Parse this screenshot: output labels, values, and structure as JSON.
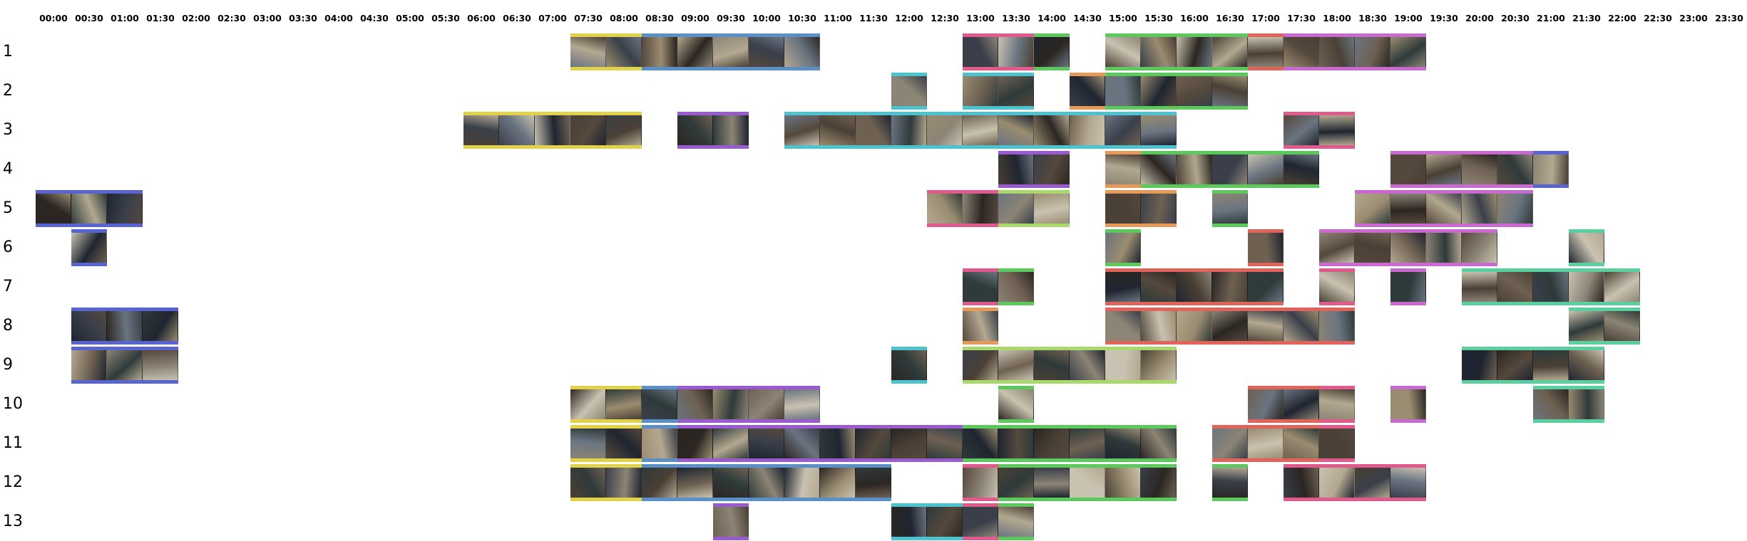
{
  "time_ticks": [
    "00:00",
    "00:30",
    "01:00",
    "01:30",
    "02:00",
    "02:30",
    "03:00",
    "03:30",
    "04:00",
    "04:30",
    "05:00",
    "05:30",
    "06:00",
    "06:30",
    "07:00",
    "07:30",
    "08:00",
    "08:30",
    "09:00",
    "09:30",
    "10:00",
    "10:30",
    "11:00",
    "11:30",
    "12:00",
    "12:30",
    "13:00",
    "13:30",
    "14:00",
    "14:30",
    "15:00",
    "15:30",
    "16:00",
    "16:30",
    "17:00",
    "17:30",
    "18:00",
    "18:30",
    "19:00",
    "19:30",
    "20:00",
    "20:30",
    "21:00",
    "21:30",
    "22:00",
    "22:30",
    "23:00",
    "23:30"
  ],
  "colors": {
    "yellow": "#e2d24a",
    "blue": "#5b8fc7",
    "cyan": "#4ec3d0",
    "green": "#5cc95c",
    "lime": "#a9d96a",
    "red": "#e0645a",
    "orange": "#e69a5a",
    "pink": "#e05a8c",
    "magenta": "#c96ad0",
    "purple": "#9a5ad0",
    "indigo": "#5a64d0",
    "teal": "#5ad0a0"
  },
  "thumb_tones": [
    "#2b2622",
    "#6e6152",
    "#3a3f4a",
    "#8c8475",
    "#1f2530",
    "#9a8c70",
    "#4a4035",
    "#b3a890",
    "#2f3a3a",
    "#6a7480",
    "#c9c2b0",
    "#55483d"
  ],
  "rows": [
    {
      "label": "1",
      "segments": [
        {
          "slots": [
            15,
            16
          ],
          "color": "yellow"
        },
        {
          "slots": [
            17,
            18,
            19,
            20,
            21
          ],
          "color": "blue"
        },
        {
          "slots": [
            26,
            27
          ],
          "color": "pink"
        },
        {
          "slots": [
            28
          ],
          "color": "green"
        },
        {
          "slots": [
            30,
            31,
            32,
            33
          ],
          "color": "green"
        },
        {
          "slots": [
            34
          ],
          "color": "red"
        },
        {
          "slots": [
            35,
            36,
            37,
            38
          ],
          "color": "magenta"
        }
      ]
    },
    {
      "label": "2",
      "segments": [
        {
          "slots": [
            24
          ],
          "color": "cyan"
        },
        {
          "slots": [
            26,
            27
          ],
          "color": "cyan"
        },
        {
          "slots": [
            29
          ],
          "color": "orange"
        },
        {
          "slots": [
            30,
            31,
            32,
            33
          ],
          "color": "green"
        }
      ]
    },
    {
      "label": "3",
      "segments": [
        {
          "slots": [
            12,
            13,
            14,
            15,
            16
          ],
          "color": "yellow"
        },
        {
          "slots": [
            18,
            19
          ],
          "color": "purple"
        },
        {
          "slots": [
            21,
            22,
            23,
            24,
            25,
            26,
            27,
            28,
            29,
            30,
            31
          ],
          "color": "cyan"
        },
        {
          "slots": [
            35,
            36
          ],
          "color": "pink"
        }
      ]
    },
    {
      "label": "4",
      "segments": [
        {
          "slots": [
            27,
            28
          ],
          "color": "purple"
        },
        {
          "slots": [
            30
          ],
          "color": "orange"
        },
        {
          "slots": [
            31,
            32,
            33,
            34,
            35
          ],
          "color": "green"
        },
        {
          "slots": [
            38,
            39,
            40,
            41
          ],
          "color": "magenta"
        },
        {
          "slots": [
            42
          ],
          "color": "indigo"
        }
      ]
    },
    {
      "label": "5",
      "segments": [
        {
          "slots": [
            0,
            1,
            2
          ],
          "color": "indigo"
        },
        {
          "slots": [
            25,
            26
          ],
          "color": "pink"
        },
        {
          "slots": [
            27,
            28
          ],
          "color": "lime"
        },
        {
          "slots": [
            30,
            31
          ],
          "color": "orange"
        },
        {
          "slots": [
            33
          ],
          "color": "green"
        },
        {
          "slots": [
            37,
            38,
            39,
            40,
            41
          ],
          "color": "magenta"
        }
      ]
    },
    {
      "label": "6",
      "segments": [
        {
          "slots": [
            1
          ],
          "color": "indigo"
        },
        {
          "slots": [
            30
          ],
          "color": "green"
        },
        {
          "slots": [
            34
          ],
          "color": "red"
        },
        {
          "slots": [
            36,
            37,
            38,
            39,
            40
          ],
          "color": "magenta"
        },
        {
          "slots": [
            43
          ],
          "color": "teal"
        }
      ]
    },
    {
      "label": "7",
      "segments": [
        {
          "slots": [
            26
          ],
          "color": "pink"
        },
        {
          "slots": [
            27
          ],
          "color": "green"
        },
        {
          "slots": [
            30,
            31,
            32,
            33,
            34
          ],
          "color": "red"
        },
        {
          "slots": [
            36
          ],
          "color": "pink"
        },
        {
          "slots": [
            38
          ],
          "color": "magenta"
        },
        {
          "slots": [
            40,
            41,
            42,
            43,
            44
          ],
          "color": "teal"
        }
      ]
    },
    {
      "label": "8",
      "segments": [
        {
          "slots": [
            1,
            2,
            3
          ],
          "color": "indigo"
        },
        {
          "slots": [
            26
          ],
          "color": "orange"
        },
        {
          "slots": [
            30,
            31,
            32,
            33,
            34,
            35,
            36
          ],
          "color": "red"
        },
        {
          "slots": [
            43,
            44
          ],
          "color": "teal"
        }
      ]
    },
    {
      "label": "9",
      "segments": [
        {
          "slots": [
            1,
            2,
            3
          ],
          "color": "indigo"
        },
        {
          "slots": [
            24
          ],
          "color": "cyan"
        },
        {
          "slots": [
            26,
            27,
            28,
            29,
            30,
            31
          ],
          "color": "lime"
        },
        {
          "slots": [
            40,
            41,
            42,
            43
          ],
          "color": "teal"
        }
      ]
    },
    {
      "label": "10",
      "segments": [
        {
          "slots": [
            15,
            16
          ],
          "color": "yellow"
        },
        {
          "slots": [
            17
          ],
          "color": "blue"
        },
        {
          "slots": [
            18,
            19,
            20,
            21
          ],
          "color": "purple"
        },
        {
          "slots": [
            27
          ],
          "color": "green"
        },
        {
          "slots": [
            34,
            35
          ],
          "color": "red"
        },
        {
          "slots": [
            36
          ],
          "color": "pink"
        },
        {
          "slots": [
            38
          ],
          "color": "magenta"
        },
        {
          "slots": [
            42,
            43
          ],
          "color": "teal"
        }
      ]
    },
    {
      "label": "11",
      "segments": [
        {
          "slots": [
            15,
            16
          ],
          "color": "yellow"
        },
        {
          "slots": [
            17
          ],
          "color": "blue"
        },
        {
          "slots": [
            18,
            19,
            20,
            21,
            22,
            23,
            24,
            25
          ],
          "color": "purple"
        },
        {
          "slots": [
            26,
            27,
            28,
            29,
            30,
            31
          ],
          "color": "green"
        },
        {
          "slots": [
            33,
            34,
            35
          ],
          "color": "red"
        },
        {
          "slots": [
            36
          ],
          "color": "pink"
        }
      ]
    },
    {
      "label": "12",
      "segments": [
        {
          "slots": [
            15,
            16
          ],
          "color": "yellow"
        },
        {
          "slots": [
            17,
            18,
            19,
            20,
            21,
            22,
            23
          ],
          "color": "blue"
        },
        {
          "slots": [
            26
          ],
          "color": "pink"
        },
        {
          "slots": [
            27,
            28,
            29,
            30,
            31
          ],
          "color": "green"
        },
        {
          "slots": [
            33
          ],
          "color": "green"
        },
        {
          "slots": [
            35,
            36,
            37,
            38
          ],
          "color": "pink"
        }
      ]
    },
    {
      "label": "13",
      "segments": [
        {
          "slots": [
            19
          ],
          "color": "purple"
        },
        {
          "slots": [
            24,
            25
          ],
          "color": "cyan"
        },
        {
          "slots": [
            26
          ],
          "color": "pink"
        },
        {
          "slots": [
            27
          ],
          "color": "green"
        }
      ]
    }
  ]
}
